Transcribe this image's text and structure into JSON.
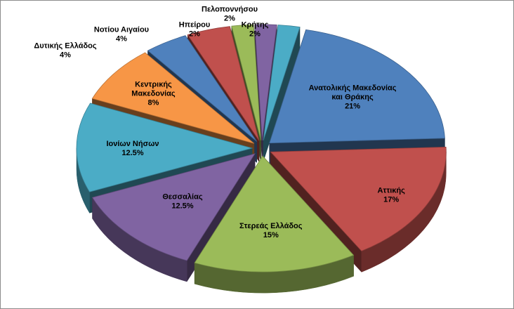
{
  "chart_data": {
    "type": "pie",
    "style": "3d-exploded",
    "legend": "none",
    "slices": [
      {
        "label": "Ανατολικής Μακεδονίας και Θράκης",
        "lines": [
          "Ανατολικής Μακεδονίας",
          "και Θράκης"
        ],
        "value": 21,
        "value_label": "21%",
        "color": "#4F81BD"
      },
      {
        "label": "Αττικής",
        "lines": [
          "Αττικής"
        ],
        "value": 17,
        "value_label": "17%",
        "color": "#C0504D"
      },
      {
        "label": "Στερεάς Ελλάδος",
        "lines": [
          "Στερεάς Ελλάδος"
        ],
        "value": 15,
        "value_label": "15%",
        "color": "#9BBB59"
      },
      {
        "label": "Θεσσαλίας",
        "lines": [
          "Θεσσαλίας"
        ],
        "value": 12.5,
        "value_label": "12.5%",
        "color": "#8064A2"
      },
      {
        "label": "Ιονίων Νήσων",
        "lines": [
          "Ιονίων Νήσων"
        ],
        "value": 12.5,
        "value_label": "12.5%",
        "color": "#4BACC6"
      },
      {
        "label": "Κεντρικής Μακεδονίας",
        "lines": [
          "Κεντρικής",
          "Μακεδονίας"
        ],
        "value": 8,
        "value_label": "8%",
        "color": "#F79646"
      },
      {
        "label": "Δυτικής Ελλάδος",
        "lines": [
          "Δυτικής Ελλάδος"
        ],
        "value": 4,
        "value_label": "4%",
        "color": "#4F81BD"
      },
      {
        "label": "Νοτίου Αιγαίου",
        "lines": [
          "Νοτίου Αιγαίου"
        ],
        "value": 4,
        "value_label": "4%",
        "color": "#C0504D"
      },
      {
        "label": "Ηπείρου",
        "lines": [
          "Ηπείρου"
        ],
        "value": 2,
        "value_label": "2%",
        "color": "#9BBB59"
      },
      {
        "label": "Πελοποννήσου",
        "lines": [
          "Πελοποννήσου"
        ],
        "value": 2,
        "value_label": "2%",
        "color": "#8064A2"
      },
      {
        "label": "Κρήτης",
        "lines": [
          "Κρήτης"
        ],
        "value": 2,
        "value_label": "2%",
        "color": "#4BACC6"
      }
    ]
  }
}
